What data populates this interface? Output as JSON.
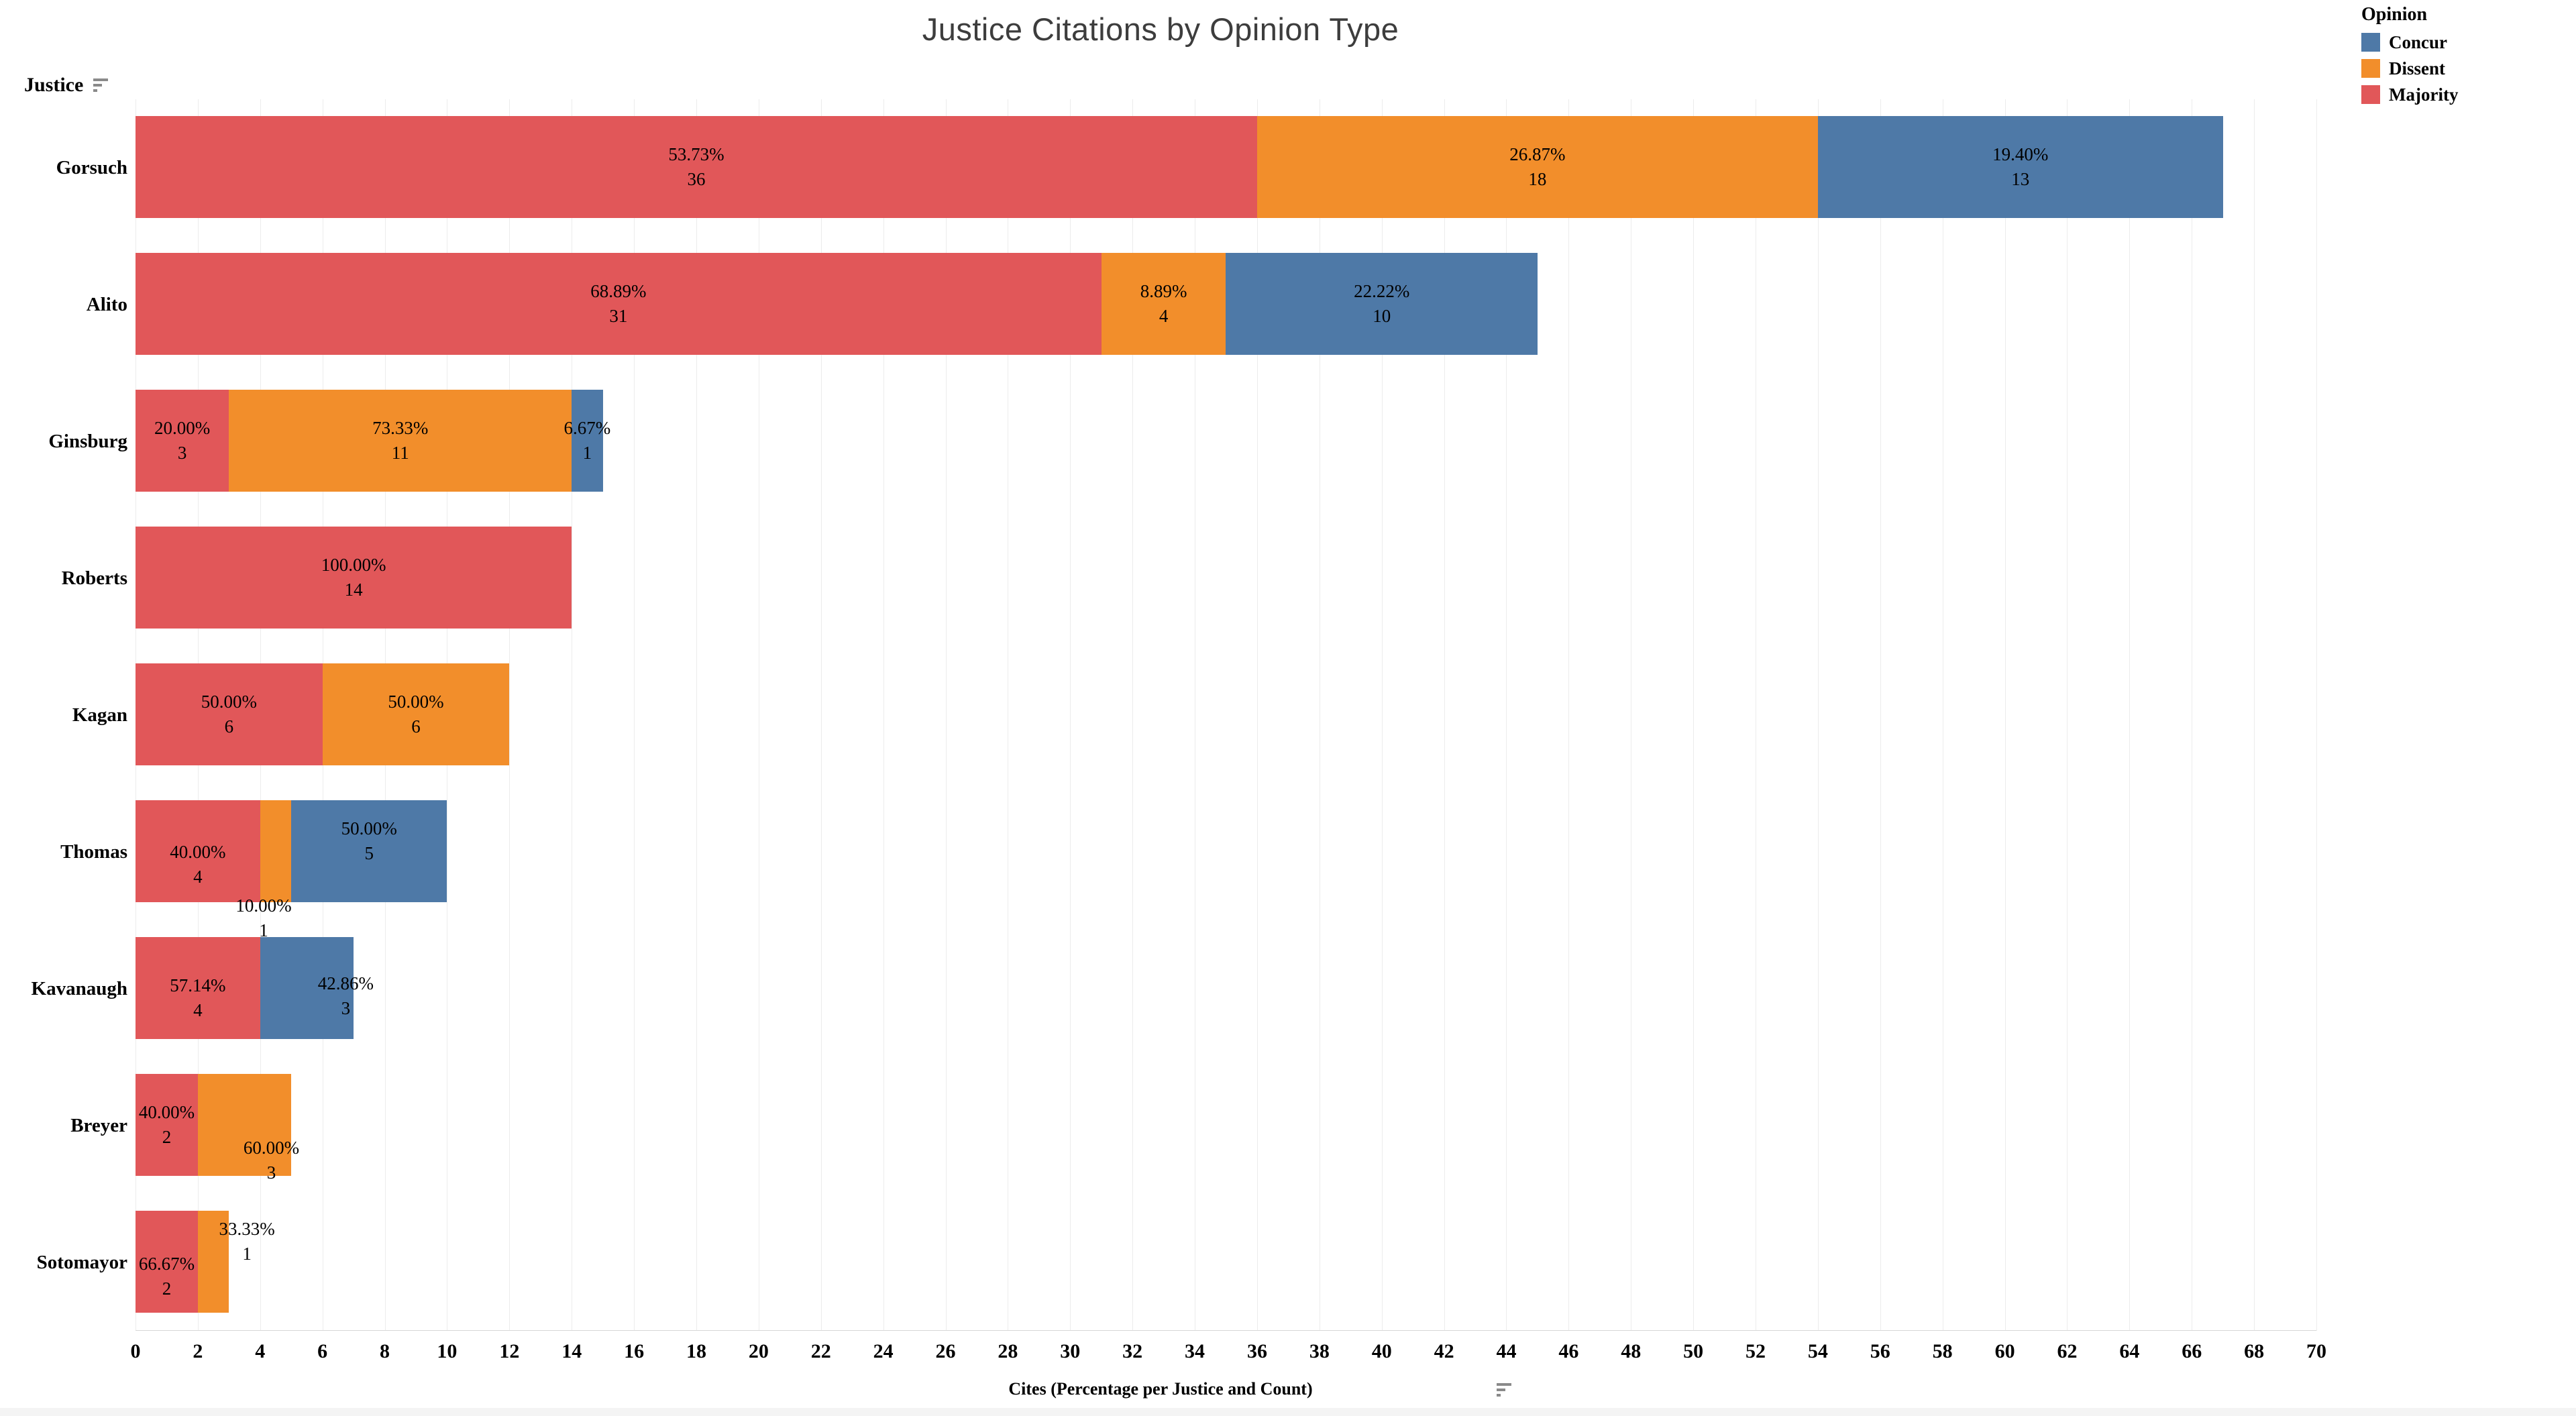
{
  "title": "Justice Citations by Opinion Type",
  "row_header": "Justice",
  "legend": {
    "title": "Opinion",
    "items": [
      {
        "label": "Concur",
        "color": "#4e79a7"
      },
      {
        "label": "Dissent",
        "color": "#f28e2b"
      },
      {
        "label": "Majority",
        "color": "#e15759"
      }
    ]
  },
  "x_axis": {
    "title": "Cites (Percentage per Justice and Count)",
    "min": 0,
    "max": 70,
    "tick_step": 2
  },
  "colors": {
    "Majority": "#e15759",
    "Dissent": "#f28e2b",
    "Concur": "#4e79a7"
  },
  "chart_data": {
    "type": "bar",
    "orientation": "horizontal",
    "stacked": true,
    "title": "Justice Citations by Opinion Type",
    "xlabel": "Cites (Percentage per Justice and Count)",
    "ylabel": "Justice",
    "xlim": [
      0,
      70
    ],
    "tick_step": 2,
    "grid": true,
    "legend_position": "top-right",
    "series_order": [
      "Majority",
      "Dissent",
      "Concur"
    ],
    "categories": [
      "Gorsuch",
      "Alito",
      "Ginsburg",
      "Roberts",
      "Kagan",
      "Thomas",
      "Kavanaugh",
      "Breyer",
      "Sotomayor"
    ],
    "rows": [
      {
        "justice": "Gorsuch",
        "segments": [
          {
            "opinion": "Majority",
            "count": 36,
            "pct": "53.73%"
          },
          {
            "opinion": "Dissent",
            "count": 18,
            "pct": "26.87%"
          },
          {
            "opinion": "Concur",
            "count": 13,
            "pct": "19.40%"
          }
        ]
      },
      {
        "justice": "Alito",
        "segments": [
          {
            "opinion": "Majority",
            "count": 31,
            "pct": "68.89%"
          },
          {
            "opinion": "Dissent",
            "count": 4,
            "pct": "8.89%"
          },
          {
            "opinion": "Concur",
            "count": 10,
            "pct": "22.22%"
          }
        ]
      },
      {
        "justice": "Ginsburg",
        "segments": [
          {
            "opinion": "Majority",
            "count": 3,
            "pct": "20.00%"
          },
          {
            "opinion": "Dissent",
            "count": 11,
            "pct": "73.33%"
          },
          {
            "opinion": "Concur",
            "count": 1,
            "pct": "6.67%"
          }
        ]
      },
      {
        "justice": "Roberts",
        "segments": [
          {
            "opinion": "Majority",
            "count": 14,
            "pct": "100.00%"
          }
        ]
      },
      {
        "justice": "Kagan",
        "segments": [
          {
            "opinion": "Majority",
            "count": 6,
            "pct": "50.00%"
          },
          {
            "opinion": "Dissent",
            "count": 6,
            "pct": "50.00%"
          }
        ]
      },
      {
        "justice": "Thomas",
        "segments": [
          {
            "opinion": "Majority",
            "count": 4,
            "pct": "40.00%",
            "label_dy": 20
          },
          {
            "opinion": "Dissent",
            "count": 1,
            "pct": "10.00%",
            "label_dx": -18,
            "label_dy": 100
          },
          {
            "opinion": "Concur",
            "count": 5,
            "pct": "50.00%",
            "label_dy": -15
          }
        ]
      },
      {
        "justice": "Kavanaugh",
        "segments": [
          {
            "opinion": "Majority",
            "count": 4,
            "pct": "57.14%",
            "label_dy": 15
          },
          {
            "opinion": "Concur",
            "count": 3,
            "pct": "42.86%",
            "label_dx": 58,
            "label_dy": 12
          }
        ]
      },
      {
        "justice": "Breyer",
        "segments": [
          {
            "opinion": "Majority",
            "count": 2,
            "pct": "40.00%"
          },
          {
            "opinion": "Dissent",
            "count": 3,
            "pct": "60.00%",
            "label_dx": 40,
            "label_dy": 53
          }
        ]
      },
      {
        "justice": "Sotomayor",
        "segments": [
          {
            "opinion": "Majority",
            "count": 2,
            "pct": "66.67%",
            "label_dy": 22
          },
          {
            "opinion": "Dissent",
            "count": 1,
            "pct": "33.33%",
            "label_dx": 50,
            "label_dy": -30
          }
        ]
      }
    ]
  }
}
